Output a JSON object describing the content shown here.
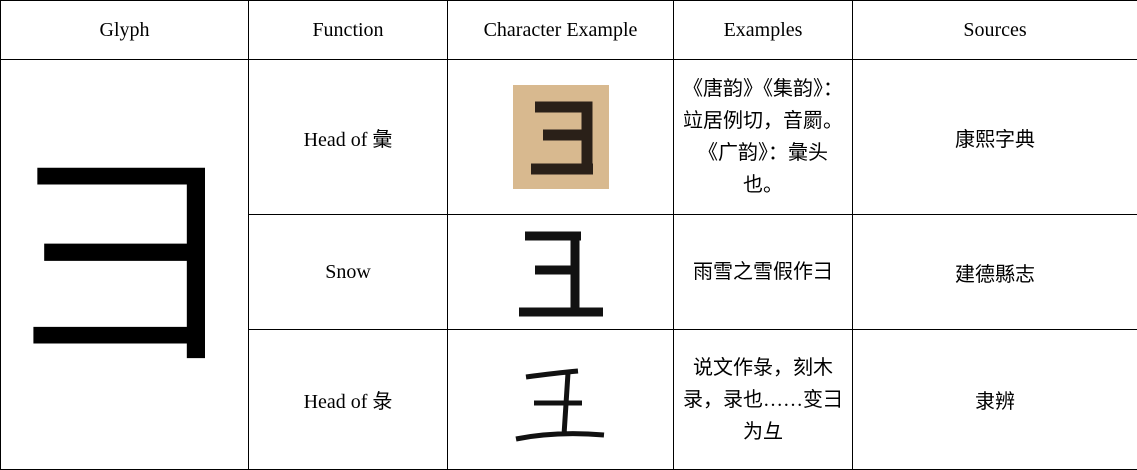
{
  "table": {
    "header": [
      "Glyph",
      "Function",
      "Character Example",
      "Examples",
      "Sources"
    ],
    "glyph": "彐",
    "rows": [
      {
        "function": "Head of 彙",
        "examples": "《唐韵》《集韵》：竝居例切，音罽。《广韵》：彙头也。",
        "source": "康熙字典"
      },
      {
        "function": "Snow",
        "examples": "雨雪之雪假作彐",
        "source": "建德縣志"
      },
      {
        "function": "Head of 彔",
        "examples": "说文作彔，刻木录，录也……变彐为彑",
        "source": "隶辨"
      }
    ]
  }
}
